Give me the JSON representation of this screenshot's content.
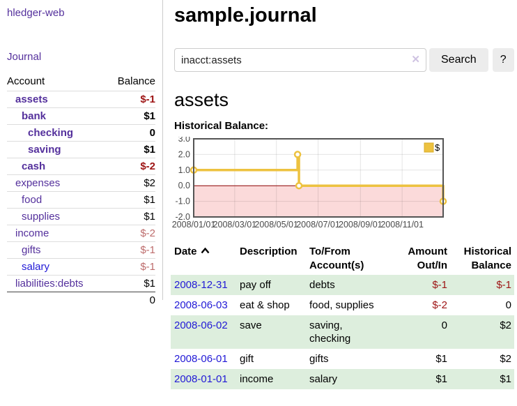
{
  "app": {
    "brand": "hledger-web"
  },
  "colors": {
    "link_purple": "#54309c",
    "link_blue": "#2119d6",
    "negative_strong": "#9d1414",
    "negative_muted": "#bd6c6c",
    "row_shading_green": "#ddeedd",
    "chart_line_gold": "#edc240"
  },
  "sidebar": {
    "journal_link": "Journal",
    "table": {
      "account_header": "Account",
      "balance_header": "Balance",
      "rows": [
        {
          "name": "assets",
          "balance": "$-1",
          "indent": 1,
          "bold": true,
          "balance_color": "negative-strong",
          "link_color": "purple"
        },
        {
          "name": "bank",
          "balance": "$1",
          "indent": 2,
          "bold": true,
          "balance_color": "normal",
          "link_color": "purple"
        },
        {
          "name": "checking",
          "balance": "0",
          "indent": 3,
          "bold": true,
          "balance_color": "normal",
          "link_color": "purple"
        },
        {
          "name": "saving",
          "balance": "$1",
          "indent": 3,
          "bold": true,
          "balance_color": "normal",
          "link_color": "purple"
        },
        {
          "name": "cash",
          "balance": "$-2",
          "indent": 2,
          "bold": true,
          "balance_color": "negative-strong",
          "link_color": "purple"
        },
        {
          "name": "expenses",
          "balance": "$2",
          "indent": 1,
          "bold": false,
          "balance_color": "normal",
          "link_color": "purple"
        },
        {
          "name": "food",
          "balance": "$1",
          "indent": 2,
          "bold": false,
          "balance_color": "normal",
          "link_color": "purple"
        },
        {
          "name": "supplies",
          "balance": "$1",
          "indent": 2,
          "bold": false,
          "balance_color": "normal",
          "link_color": "purple"
        },
        {
          "name": "income",
          "balance": "$-2",
          "indent": 1,
          "bold": false,
          "balance_color": "negative-muted",
          "link_color": "purple"
        },
        {
          "name": "gifts",
          "balance": "$-1",
          "indent": 2,
          "bold": false,
          "balance_color": "negative-muted",
          "link_color": "purple"
        },
        {
          "name": "salary",
          "balance": "$-1",
          "indent": 2,
          "bold": false,
          "balance_color": "negative-muted",
          "link_color": "blue"
        },
        {
          "name": "liabilities:debts",
          "balance": "$1",
          "indent": 1,
          "bold": false,
          "balance_color": "normal",
          "link_color": "purple"
        }
      ],
      "total": "0"
    }
  },
  "main": {
    "title": "sample.journal",
    "search": {
      "value": "inacct:assets",
      "clear_icon": "✕",
      "button_label": "Search",
      "help_label": "?"
    },
    "account_heading": "assets",
    "chart_heading": "Historical Balance:",
    "register": {
      "headers": {
        "date": "Date",
        "description": "Description",
        "account": "To/From\nAccount(s)",
        "amount": "Amount\nOut/In",
        "balance": "Historical\nBalance"
      },
      "rows": [
        {
          "date": "2008-12-31",
          "description": "pay off",
          "account": "debts",
          "amount": "$-1",
          "amount_negative": true,
          "balance": "$-1",
          "balance_negative": true,
          "shaded": true
        },
        {
          "date": "2008-06-03",
          "description": "eat & shop",
          "account": "food, supplies",
          "amount": "$-2",
          "amount_negative": true,
          "balance": "0",
          "balance_negative": false,
          "shaded": false
        },
        {
          "date": "2008-06-02",
          "description": "save",
          "account": "saving,\nchecking",
          "amount": "0",
          "amount_negative": false,
          "balance": "$2",
          "balance_negative": false,
          "shaded": true
        },
        {
          "date": "2008-06-01",
          "description": "gift",
          "account": "gifts",
          "amount": "$1",
          "amount_negative": false,
          "balance": "$2",
          "balance_negative": false,
          "shaded": false
        },
        {
          "date": "2008-01-01",
          "description": "income",
          "account": "salary",
          "amount": "$1",
          "amount_negative": false,
          "balance": "$1",
          "balance_negative": false,
          "shaded": true
        }
      ]
    }
  },
  "chart_data": {
    "type": "line",
    "title": "Historical Balance:",
    "step": true,
    "series": [
      {
        "name": "$",
        "color": "#edc240",
        "points": [
          [
            "2008-01-01",
            1
          ],
          [
            "2008-06-01",
            2
          ],
          [
            "2008-06-03",
            0
          ],
          [
            "2008-12-31",
            -1
          ]
        ]
      }
    ],
    "x_range": [
      "2008-01-01",
      "2008-12-31"
    ],
    "ylim": [
      -2,
      3
    ],
    "y_ticks": [
      "3.0",
      "2.0",
      "1.0",
      "0.0",
      "-1.0",
      "-2.0"
    ],
    "y_gridlines": [
      2,
      1,
      -1
    ],
    "x_ticks": [
      {
        "label": "2008/01/01",
        "date": "2008-01-01"
      },
      {
        "label": "2008/03/01",
        "date": "2008-03-01"
      },
      {
        "label": "2008/05/01",
        "date": "2008-05-01"
      },
      {
        "label": "2008/07/01",
        "date": "2008-07-01"
      },
      {
        "label": "2008/09/01",
        "date": "2008-09-01"
      },
      {
        "label": "2008/11/01",
        "date": "2008-11-01"
      }
    ],
    "grid": true,
    "legend_position": "top-right",
    "negative_region_color": "#fbdada",
    "zero_line_color": "#8b0000"
  }
}
